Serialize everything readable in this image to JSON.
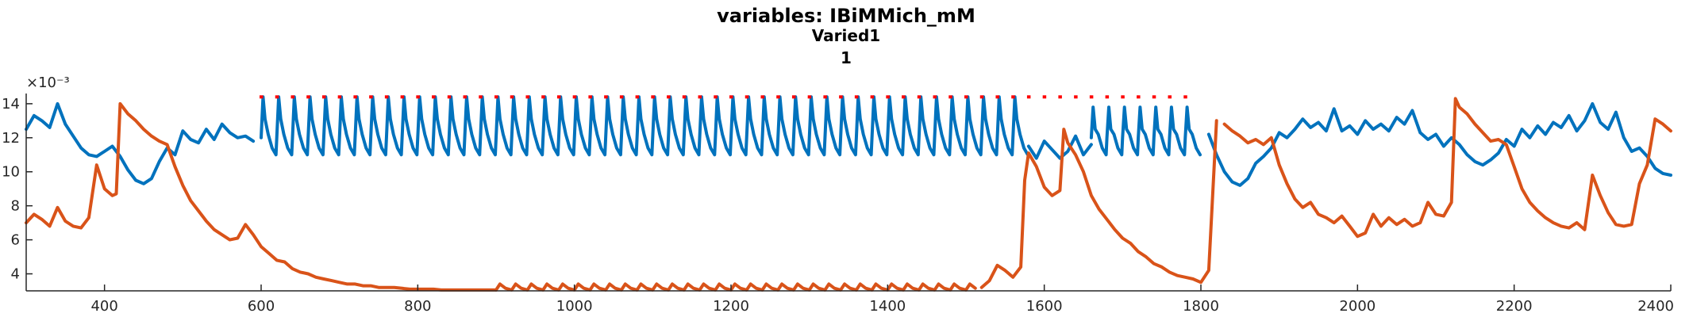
{
  "chart_data": {
    "type": "line",
    "title_lines": [
      "variables: IBiMMich_mM",
      "Varied1",
      "1"
    ],
    "xlabel": "",
    "ylabel": "",
    "y_exponent_label": "×10⁻³",
    "xlim": [
      300,
      2400
    ],
    "ylim": [
      3.0,
      14.6
    ],
    "x_ticks": [
      400,
      600,
      800,
      1000,
      1200,
      1400,
      1600,
      1800,
      2000,
      2200,
      2400
    ],
    "y_ticks": [
      4,
      6,
      8,
      10,
      12,
      14
    ],
    "grid": false,
    "series": [
      {
        "color": "#0072BD",
        "style": "solid",
        "segments": [
          {
            "type": "points",
            "x": [
              300,
              310,
              320,
              330,
              340,
              350,
              360,
              370,
              380,
              390,
              400,
              410,
              420,
              430,
              440,
              450,
              460,
              470,
              480,
              490,
              500,
              510,
              520,
              530,
              540,
              550,
              560,
              570,
              580,
              590
            ],
            "y": [
              12.5,
              13.3,
              13.0,
              12.6,
              14.0,
              12.8,
              12.1,
              11.4,
              11.0,
              10.9,
              11.2,
              11.5,
              10.9,
              10.1,
              9.5,
              9.3,
              9.6,
              10.6,
              11.4,
              11.0,
              12.4,
              11.9,
              11.7,
              12.5,
              11.9,
              12.8,
              12.3,
              12.0,
              12.1,
              11.8
            ]
          },
          {
            "type": "spikes",
            "start": 600,
            "end": 1580,
            "period": 20,
            "peak": 14.4,
            "trough": 11.0
          },
          {
            "type": "points",
            "x": [
              1580,
              1590,
              1600,
              1610,
              1620,
              1630,
              1640,
              1650,
              1660
            ],
            "y": [
              11.5,
              10.8,
              11.8,
              11.3,
              10.8,
              11.2,
              12.1,
              11.0,
              11.6
            ]
          },
          {
            "type": "spikes",
            "start": 1660,
            "end": 1800,
            "period": 20,
            "peak": 13.8,
            "trough": 11.0
          },
          {
            "type": "points",
            "x": [
              1810,
              1820,
              1830,
              1840,
              1850,
              1860,
              1870,
              1880,
              1890,
              1900,
              1910,
              1920,
              1930,
              1940,
              1950,
              1960,
              1970,
              1980,
              1990,
              2000,
              2010,
              2020,
              2030,
              2040,
              2050,
              2060,
              2070,
              2080,
              2090,
              2100,
              2110,
              2120,
              2130,
              2140,
              2150,
              2160,
              2170,
              2180,
              2190,
              2200,
              2210,
              2220,
              2230,
              2240,
              2250,
              2260,
              2270,
              2280,
              2290,
              2300,
              2310,
              2320,
              2330,
              2340,
              2350,
              2360,
              2370,
              2380,
              2390,
              2400
            ],
            "y": [
              12.2,
              11.0,
              10.0,
              9.4,
              9.2,
              9.6,
              10.5,
              10.9,
              11.4,
              12.3,
              12.0,
              12.5,
              13.1,
              12.6,
              12.9,
              12.4,
              13.7,
              12.4,
              12.7,
              12.2,
              13.0,
              12.5,
              12.8,
              12.4,
              13.2,
              12.8,
              13.6,
              12.3,
              11.9,
              12.2,
              11.5,
              12.0,
              11.6,
              11.0,
              10.6,
              10.4,
              10.7,
              11.1,
              11.9,
              11.5,
              12.5,
              12.0,
              12.7,
              12.2,
              12.9,
              12.6,
              13.3,
              12.4,
              13.0,
              14.0,
              12.9,
              12.5,
              13.5,
              12.0,
              11.2,
              11.4,
              10.9,
              10.2,
              9.9,
              9.8
            ]
          }
        ]
      },
      {
        "color": "#D95319",
        "style": "solid",
        "segments": [
          {
            "type": "points",
            "x": [
              300,
              310,
              320,
              330,
              340,
              350,
              360,
              370,
              380,
              390,
              400,
              410,
              415,
              420,
              430,
              440,
              450,
              460,
              470,
              480,
              490,
              500,
              510,
              520,
              530,
              540,
              550,
              560,
              570,
              580,
              590,
              600,
              610,
              620,
              630,
              640,
              650,
              660,
              670,
              680,
              690,
              700,
              710,
              720,
              730,
              740,
              750,
              760,
              770,
              780,
              790,
              800,
              810,
              820,
              830,
              840,
              850,
              860,
              870,
              880,
              890,
              900
            ],
            "y": [
              7.0,
              7.5,
              7.2,
              6.8,
              7.9,
              7.1,
              6.8,
              6.7,
              7.3,
              10.4,
              9.0,
              8.6,
              8.7,
              14.0,
              13.4,
              13.0,
              12.5,
              12.1,
              11.8,
              11.6,
              10.3,
              9.2,
              8.3,
              7.7,
              7.1,
              6.6,
              6.3,
              6.0,
              6.1,
              6.9,
              6.3,
              5.6,
              5.2,
              4.8,
              4.7,
              4.3,
              4.1,
              4.0,
              3.8,
              3.7,
              3.6,
              3.5,
              3.4,
              3.4,
              3.3,
              3.3,
              3.2,
              3.2,
              3.2,
              3.15,
              3.1,
              3.1,
              3.1,
              3.1,
              3.05,
              3.05,
              3.05,
              3.05,
              3.05,
              3.05,
              3.05,
              3.05
            ]
          },
          {
            "type": "ripples",
            "start": 900,
            "end": 1520,
            "period": 20,
            "base": 3.05,
            "amp": 0.35
          },
          {
            "type": "points",
            "x": [
              1520,
              1530,
              1540,
              1550,
              1560,
              1570,
              1575,
              1580,
              1590,
              1600,
              1610,
              1620,
              1625,
              1630,
              1640,
              1650,
              1660,
              1670,
              1680,
              1690,
              1700,
              1710,
              1720,
              1730,
              1740,
              1750,
              1760,
              1770,
              1780,
              1790,
              1800,
              1810,
              1820
            ],
            "y": [
              3.2,
              3.6,
              4.5,
              4.2,
              3.8,
              4.4,
              9.5,
              11.1,
              10.3,
              9.1,
              8.6,
              8.9,
              12.5,
              11.7,
              11.0,
              10.0,
              8.6,
              7.8,
              7.2,
              6.6,
              6.1,
              5.8,
              5.3,
              5.0,
              4.6,
              4.4,
              4.1,
              3.9,
              3.8,
              3.7,
              3.5,
              4.2,
              13.0
            ]
          },
          {
            "type": "points",
            "x": [
              1830,
              1840,
              1850,
              1860,
              1870,
              1880,
              1890,
              1900,
              1910,
              1920,
              1930,
              1940,
              1950,
              1960,
              1970,
              1980,
              1990,
              2000,
              2010,
              2020,
              2030,
              2040,
              2050,
              2060,
              2070,
              2080,
              2090,
              2100,
              2110,
              2120,
              2125,
              2130,
              2140,
              2150,
              2160,
              2170,
              2180,
              2190,
              2200,
              2210,
              2220,
              2230,
              2240,
              2250,
              2260,
              2270,
              2280,
              2290,
              2300,
              2310,
              2320,
              2330,
              2340,
              2350,
              2360,
              2370,
              2380,
              2390,
              2400
            ],
            "y": [
              12.8,
              12.4,
              12.1,
              11.7,
              11.9,
              11.6,
              12.0,
              10.4,
              9.3,
              8.4,
              7.9,
              8.2,
              7.5,
              7.3,
              7.0,
              7.4,
              6.8,
              6.2,
              6.4,
              7.5,
              6.8,
              7.3,
              6.9,
              7.2,
              6.8,
              7.0,
              8.2,
              7.5,
              7.4,
              8.2,
              14.3,
              13.8,
              13.4,
              12.8,
              12.3,
              11.8,
              11.9,
              11.6,
              10.3,
              9.0,
              8.2,
              7.7,
              7.3,
              7.0,
              6.8,
              6.7,
              7.0,
              6.6,
              9.8,
              8.6,
              7.6,
              6.9,
              6.8,
              6.9,
              9.3,
              10.4,
              13.1,
              12.8,
              12.4
            ]
          }
        ]
      },
      {
        "color": "#FF0000",
        "style": "dotted",
        "segments": [
          {
            "type": "markers",
            "start": 600,
            "end": 1780,
            "period": 20,
            "y": 14.4
          }
        ]
      }
    ]
  }
}
